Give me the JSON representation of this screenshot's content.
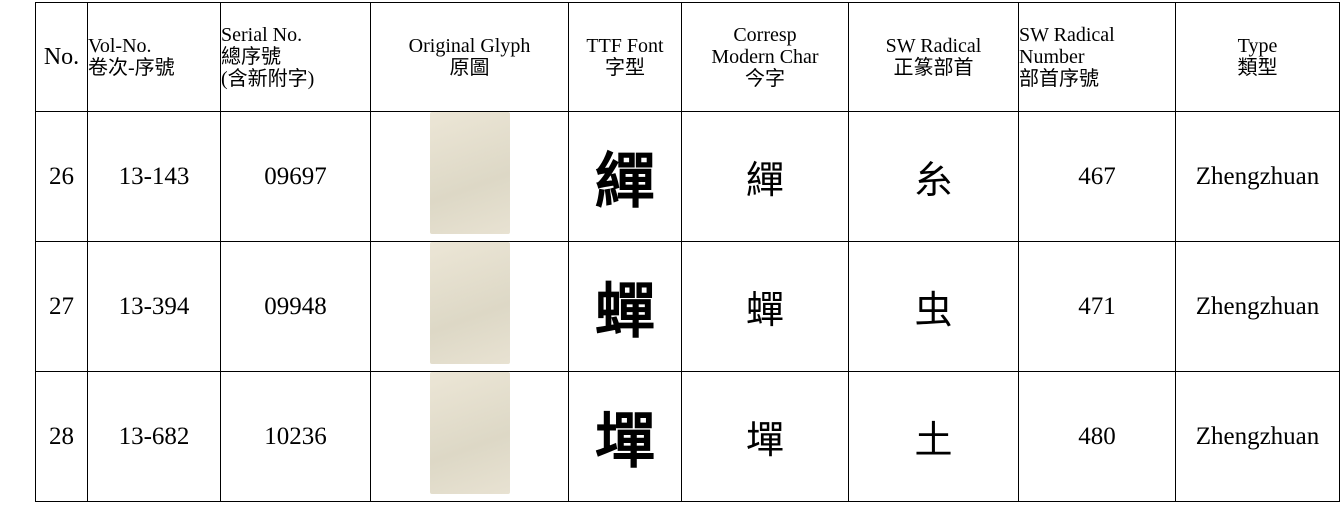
{
  "table": {
    "header": [
      [
        "No."
      ],
      [
        "Vol-No.",
        "卷次-序號"
      ],
      [
        "Serial No.",
        "總序號",
        "(含新附字)"
      ],
      [
        "Original Glyph",
        "原圖"
      ],
      [
        "TTF Font",
        "字型"
      ],
      [
        "Corresp",
        "Modern Char",
        "今字"
      ],
      [
        "SW Radical",
        "正篆部首"
      ],
      [
        "SW Radical",
        "Number",
        "部首序號"
      ],
      [
        "Type",
        "類型"
      ]
    ],
    "rows": [
      {
        "no": "26",
        "vol_no": "13-143",
        "serial": "09697",
        "ttf_font": "繟",
        "modern_char": "繟",
        "radical": "糸",
        "radical_number": "467",
        "type": "Zhengzhuan"
      },
      {
        "no": "27",
        "vol_no": "13-394",
        "serial": "09948",
        "ttf_font": "蟬",
        "modern_char": "蟬",
        "radical": "虫",
        "radical_number": "471",
        "type": "Zhengzhuan"
      },
      {
        "no": "28",
        "vol_no": "13-682",
        "serial": "10236",
        "ttf_font": "墠",
        "modern_char": "墠",
        "radical": "土",
        "radical_number": "480",
        "type": "Zhengzhuan"
      }
    ]
  }
}
